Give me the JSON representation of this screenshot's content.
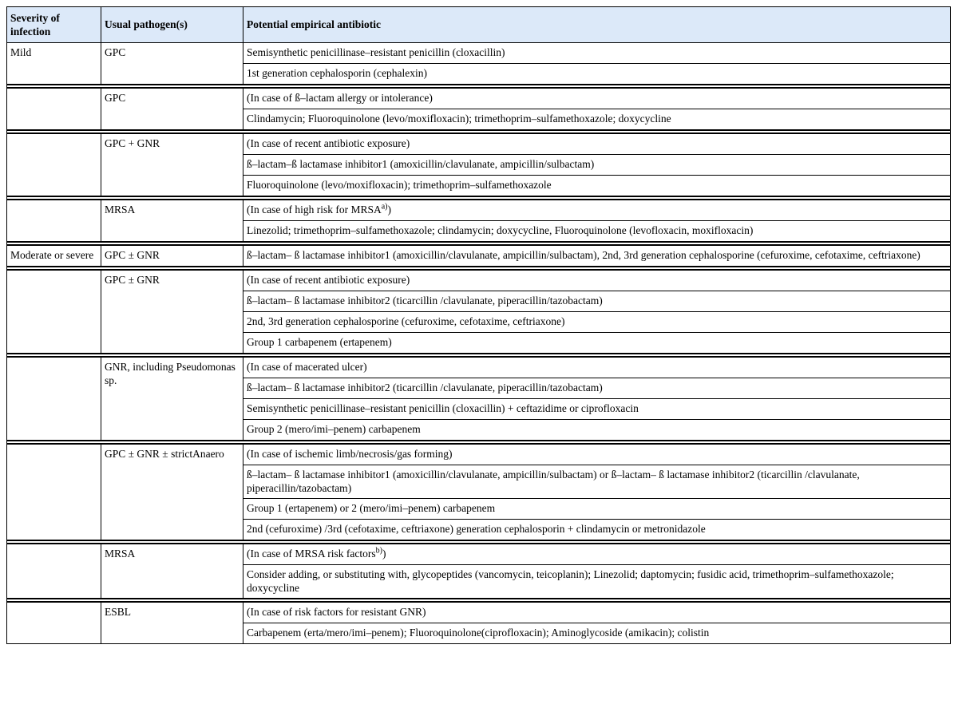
{
  "table": {
    "headers": [
      "Severity of infection",
      "Usual pathogen(s)",
      "Potential empirical antibiotic"
    ],
    "groups": [
      {
        "severity": "Mild",
        "pathogen": "GPC",
        "rows": [
          "Semisynthetic penicillinase–resistant penicillin (cloxacillin)",
          "1st generation cephalosporin (cephalexin)"
        ]
      },
      {
        "severity": "",
        "pathogen": "GPC",
        "rows": [
          "(In case of ß–lactam allergy or intolerance)",
          "Clindamycin; Fluoroquinolone (levo/moxifloxacin); trimethoprim–sulfamethoxazole; doxycycline"
        ]
      },
      {
        "severity": "",
        "pathogen": "GPC + GNR",
        "rows": [
          "(In case of recent antibiotic exposure)",
          "ß–lactam–ß lactamase inhibitor1 (amoxicillin/clavulanate, ampicillin/sulbactam)",
          "Fluoroquinolone (levo/moxifloxacin); trimethoprim–sulfamethoxazole"
        ]
      },
      {
        "severity": "",
        "pathogen": "MRSA",
        "rows": [
          "(In case of high risk for MRSA",
          "Linezolid; trimethoprim–sulfamethoxazole; clindamycin; doxycycline, Fluoroquinolone (levofloxacin, moxifloxacin)"
        ],
        "sup0": "a)",
        "sup0_after": ")"
      },
      {
        "severity": "Moderate or severe",
        "pathogen": "GPC ± GNR",
        "rows": [
          "ß–lactam– ß lactamase inhibitor1 (amoxicillin/clavulanate, ampicillin/sulbactam), 2nd, 3rd generation cephalosporine (cefuroxime, cefotaxime, ceftriaxone)"
        ]
      },
      {
        "severity": "",
        "pathogen": "GPC ± GNR",
        "rows": [
          "(In case of recent antibiotic exposure)",
          "ß–lactam– ß lactamase inhibitor2 (ticarcillin /clavulanate, piperacillin/tazobactam)",
          "2nd, 3rd generation cephalosporine (cefuroxime, cefotaxime, ceftriaxone)",
          "Group 1 carbapenem (ertapenem)"
        ]
      },
      {
        "severity": "",
        "pathogen": "GNR, including Pseudomonas sp.",
        "rows": [
          "(In case of macerated ulcer)",
          "ß–lactam– ß lactamase inhibitor2 (ticarcillin /clavulanate, piperacillin/tazobactam)",
          "Semisynthetic penicillinase–resistant penicillin (cloxacillin) + ceftazidime or ciprofloxacin",
          "Group 2 (mero/imi–penem) carbapenem"
        ]
      },
      {
        "severity": "",
        "pathogen": "GPC ± GNR ± strictAnaero",
        "rows": [
          "(In case of ischemic limb/necrosis/gas forming)",
          "ß–lactam– ß lactamase inhibitor1 (amoxicillin/clavulanate, ampicillin/sulbactam) or ß–lactam– ß lactamase inhibitor2 (ticarcillin /clavulanate, piperacillin/tazobactam)",
          "Group 1 (ertapenem) or 2 (mero/imi–penem) carbapenem",
          "2nd (cefuroxime) /3rd (cefotaxime, ceftriaxone) generation cephalosporin + clindamycin or metronidazole"
        ]
      },
      {
        "severity": "",
        "pathogen": "MRSA",
        "rows": [
          "(In case of MRSA risk factors",
          "Consider adding, or substituting with, glycopeptides (vancomycin, teicoplanin); Linezolid; daptomycin; fusidic acid, trimethoprim–sulfamethoxazole; doxycycline"
        ],
        "sup0": "b)",
        "sup0_after": ")"
      },
      {
        "severity": "",
        "pathogen": "ESBL",
        "rows": [
          "(In case of risk factors for resistant GNR)",
          "Carbapenem (erta/mero/imi–penem); Fluoroquinolone(ciprofloxacin); Aminoglycoside (amikacin); colistin"
        ]
      }
    ]
  }
}
